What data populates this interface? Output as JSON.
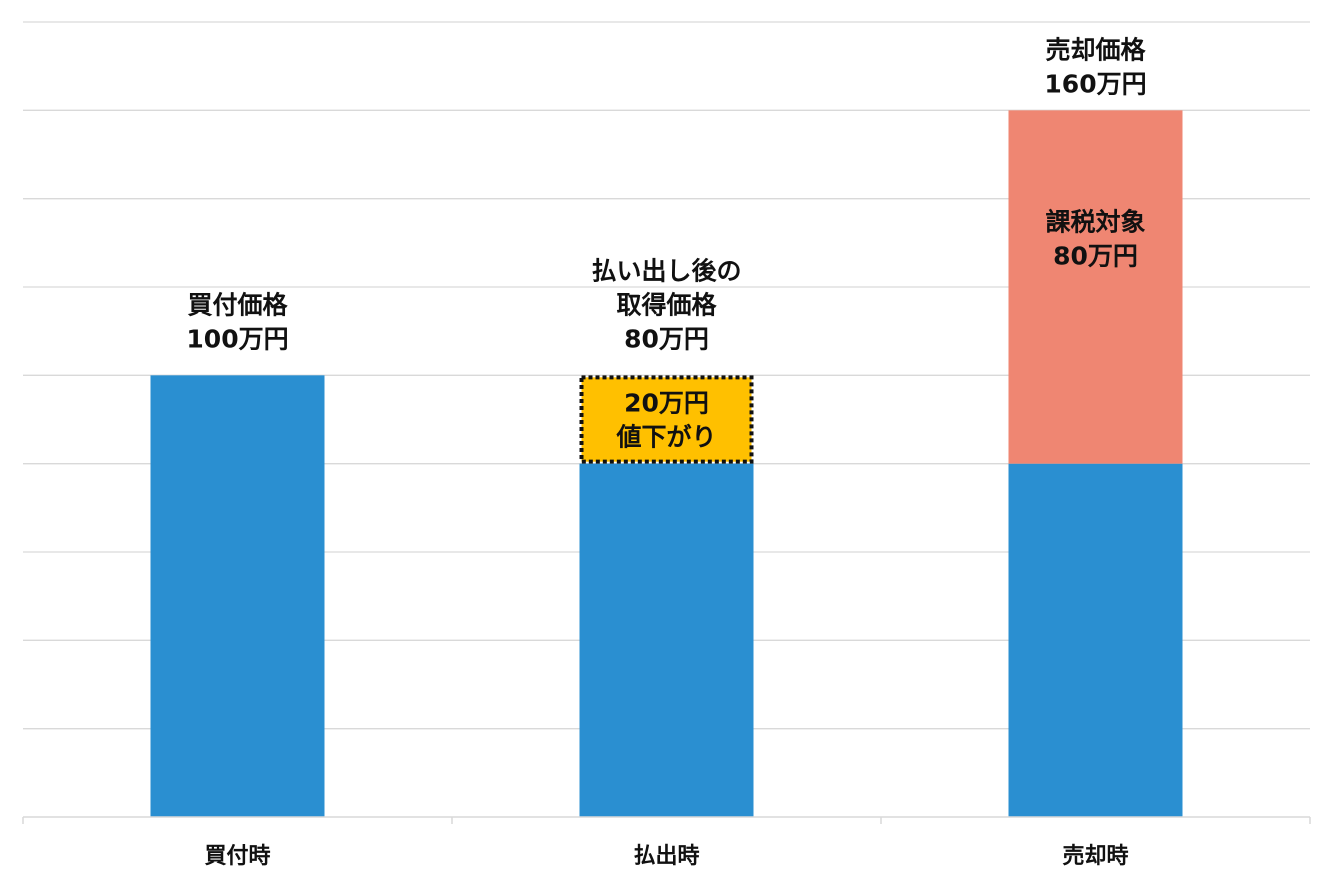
{
  "chart_data": {
    "type": "bar",
    "stacked": true,
    "title": "",
    "xlabel": "",
    "ylabel": "",
    "ylim": [
      0,
      160
    ],
    "grid": true,
    "categories": [
      "買付時",
      "払出時",
      "売却時"
    ],
    "series": [
      {
        "key": "base",
        "values": [
          100,
          80,
          80
        ],
        "color": "#2A8FD1"
      },
      {
        "key": "decline",
        "values": [
          0,
          20,
          0
        ],
        "color": "#FFC000",
        "border": "dotted-black"
      },
      {
        "key": "taxable",
        "values": [
          0,
          0,
          80
        ],
        "color": "#EF8672"
      }
    ],
    "annotations": [
      {
        "lines": [
          "買付価格",
          "100万円"
        ]
      },
      {
        "lines": [
          "払い出し後の",
          "取得価格",
          "80万円"
        ]
      },
      {
        "lines": [
          "20万円",
          "値下がり"
        ]
      },
      {
        "lines": [
          "課税対象",
          "80万円"
        ]
      },
      {
        "lines": [
          "売却価格",
          "160万円"
        ]
      }
    ]
  }
}
